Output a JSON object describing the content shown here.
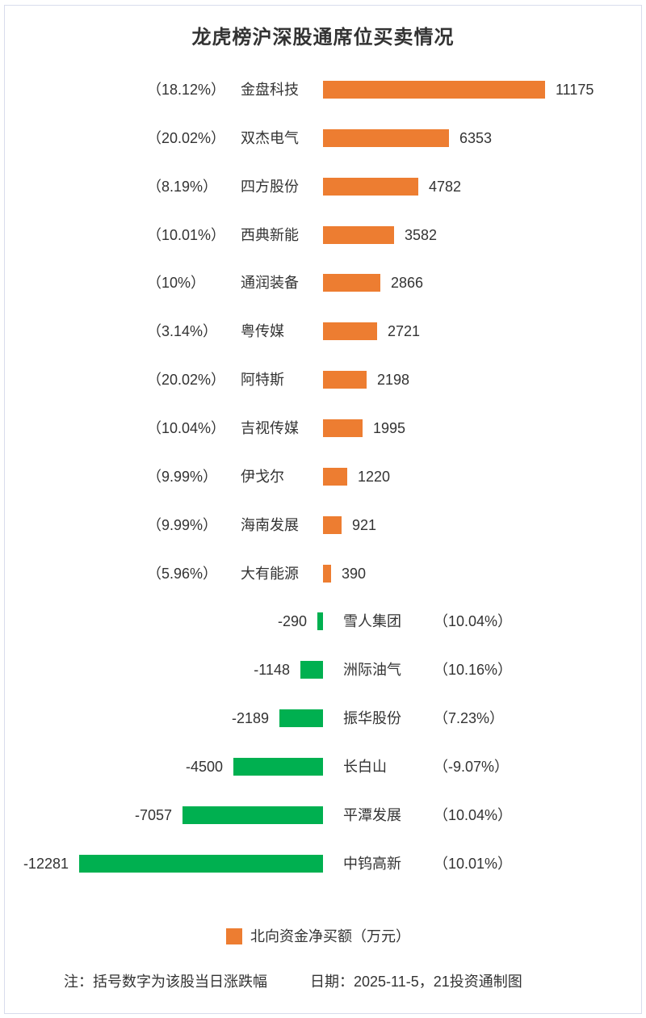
{
  "title": "龙虎榜沪深股通席位买卖情况",
  "chart_data": {
    "type": "bar",
    "orientation": "horizontal-diverging",
    "value_unit": "万元",
    "positive_color": "#ED7D31",
    "negative_color": "#00B050",
    "xlim": [
      -12281,
      11175
    ],
    "items": [
      {
        "name": "金盘科技",
        "change_pct": "（18.12%）",
        "value": 11175
      },
      {
        "name": "双杰电气",
        "change_pct": "（20.02%）",
        "value": 6353
      },
      {
        "name": "四方股份",
        "change_pct": "（8.19%）",
        "value": 4782
      },
      {
        "name": "西典新能",
        "change_pct": "（10.01%）",
        "value": 3582
      },
      {
        "name": "通润装备",
        "change_pct": "（10%）",
        "value": 2866
      },
      {
        "name": "粤传媒",
        "change_pct": "（3.14%）",
        "value": 2721
      },
      {
        "name": "阿特斯",
        "change_pct": "（20.02%）",
        "value": 2198
      },
      {
        "name": "吉视传媒",
        "change_pct": "（10.04%）",
        "value": 1995
      },
      {
        "name": "伊戈尔",
        "change_pct": "（9.99%）",
        "value": 1220
      },
      {
        "name": "海南发展",
        "change_pct": "（9.99%）",
        "value": 921
      },
      {
        "name": "大有能源",
        "change_pct": "（5.96%）",
        "value": 390
      },
      {
        "name": "雪人集团",
        "change_pct": "（10.04%）",
        "value": -290
      },
      {
        "name": "洲际油气",
        "change_pct": "（10.16%）",
        "value": -1148
      },
      {
        "name": "振华股份",
        "change_pct": "（7.23%）",
        "value": -2189
      },
      {
        "name": "长白山",
        "change_pct": "（-9.07%）",
        "value": -4500
      },
      {
        "name": "平潭发展",
        "change_pct": "（10.04%）",
        "value": -7057
      },
      {
        "name": "中钨高新",
        "change_pct": "（10.01%）",
        "value": -12281
      }
    ]
  },
  "legend": {
    "swatch_color": "#ED7D31",
    "label": "北向资金净买额（万元）"
  },
  "footer": {
    "note": "注：括号数字为该股当日涨跌幅",
    "date_credit": "日期：2025-11-5，21投资通制图"
  }
}
